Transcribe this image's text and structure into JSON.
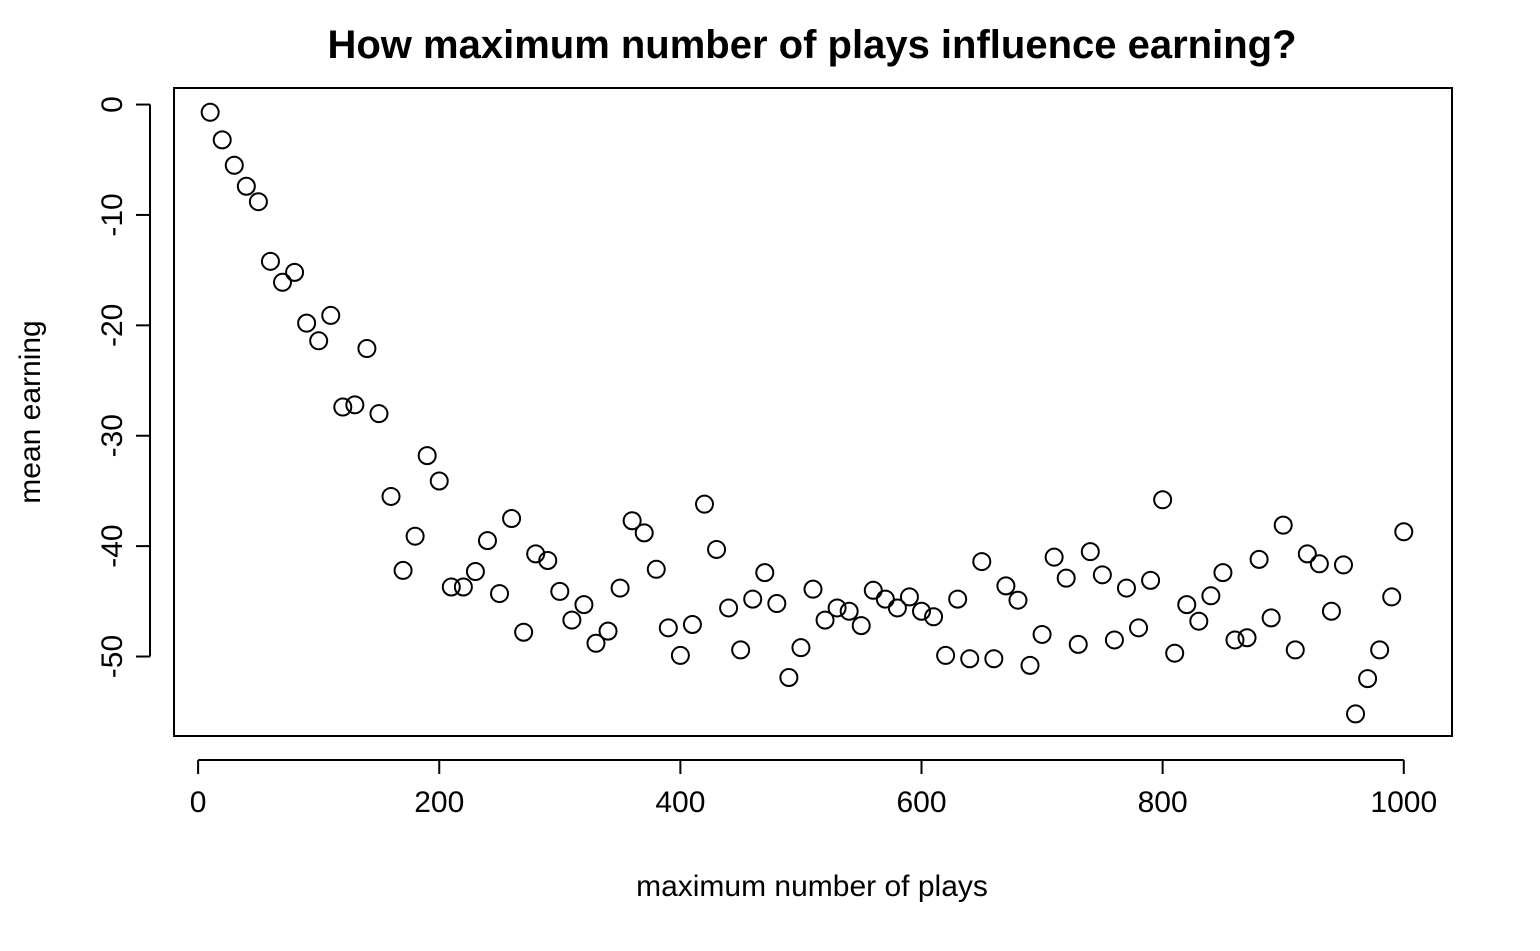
{
  "chart_data": {
    "type": "scatter",
    "title": "How maximum number of plays influence earning?",
    "xlabel": "maximum number of plays",
    "ylabel": "mean earning",
    "xlim": [
      -20,
      1040
    ],
    "ylim": [
      -57.2,
      1.5
    ],
    "x_ticks": [
      0,
      200,
      400,
      600,
      800,
      1000
    ],
    "y_ticks": [
      0,
      -10,
      -20,
      -30,
      -40,
      -50
    ],
    "x_tick_labels": [
      "0",
      "200",
      "400",
      "600",
      "800",
      "1000"
    ],
    "y_tick_labels": [
      "0",
      "-10",
      "-20",
      "-30",
      "-40",
      "-50"
    ],
    "grid": false,
    "marker": "open-circle",
    "x": [
      10,
      20,
      30,
      40,
      50,
      60,
      70,
      80,
      90,
      100,
      110,
      120,
      130,
      140,
      150,
      160,
      170,
      180,
      190,
      200,
      210,
      220,
      230,
      240,
      250,
      260,
      270,
      280,
      290,
      300,
      310,
      320,
      330,
      340,
      350,
      360,
      370,
      380,
      390,
      400,
      410,
      420,
      430,
      440,
      450,
      460,
      470,
      480,
      490,
      500,
      510,
      520,
      530,
      540,
      550,
      560,
      570,
      580,
      590,
      600,
      610,
      620,
      630,
      640,
      650,
      660,
      670,
      680,
      690,
      700,
      710,
      720,
      730,
      740,
      750,
      760,
      770,
      780,
      790,
      800,
      810,
      820,
      830,
      840,
      850,
      860,
      870,
      880,
      890,
      900,
      910,
      920,
      930,
      940,
      950,
      960,
      970,
      980,
      990,
      1000
    ],
    "y": [
      -0.7,
      -3.2,
      -5.5,
      -7.4,
      -8.8,
      -14.2,
      -16.1,
      -15.2,
      -19.8,
      -21.4,
      -19.1,
      -27.4,
      -27.2,
      -22.1,
      -28.0,
      -35.5,
      -42.2,
      -39.1,
      -31.8,
      -34.1,
      -43.7,
      -43.7,
      -42.3,
      -39.5,
      -44.3,
      -37.5,
      -47.8,
      -40.7,
      -41.3,
      -44.1,
      -46.7,
      -45.3,
      -48.8,
      -47.7,
      -43.8,
      -37.7,
      -38.8,
      -42.1,
      -47.4,
      -49.9,
      -47.1,
      -36.2,
      -40.3,
      -45.6,
      -49.4,
      -44.8,
      -42.4,
      -45.2,
      -51.9,
      -49.2,
      -43.9,
      -46.7,
      -45.6,
      -45.9,
      -47.2,
      -44.0,
      -44.8,
      -45.6,
      -44.6,
      -45.9,
      -46.4,
      -49.9,
      -44.8,
      -50.2,
      -41.4,
      -50.2,
      -43.6,
      -44.9,
      -50.8,
      -48.0,
      -41.0,
      -42.9,
      -48.9,
      -40.5,
      -42.6,
      -48.5,
      -43.8,
      -47.4,
      -43.1,
      -35.8,
      -49.7,
      -45.3,
      -46.8,
      -44.5,
      -42.4,
      -48.5,
      -48.3,
      -41.2,
      -46.5,
      -38.1,
      -49.4,
      -40.7,
      -41.6,
      -45.9,
      -41.7,
      -55.2,
      -52.0,
      -49.4,
      -44.6,
      -38.7
    ]
  }
}
